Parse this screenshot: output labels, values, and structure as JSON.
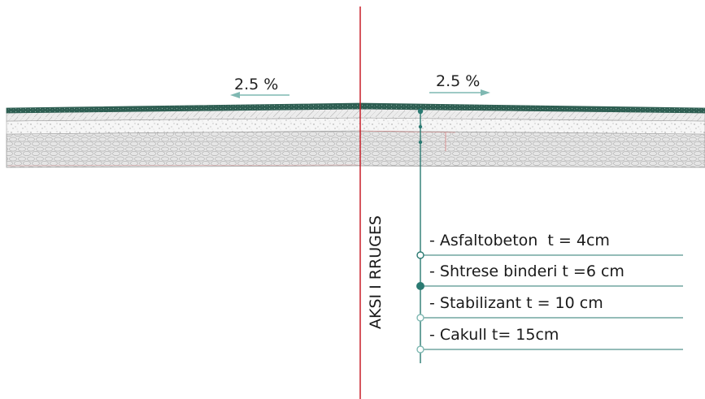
{
  "diagram": {
    "axis_label": "AKSI I RRUGES",
    "slope_left": "2.5 %",
    "slope_right": "2.5 %",
    "layers": [
      "- Asfaltobeton  t = 4cm",
      "- Shtrese binderi t =6 cm",
      "- Stabilizant t = 10 cm",
      "- Cakull t= 15cm"
    ],
    "colors": {
      "axis_line": "#c81e28",
      "leader_line": "#2a7a72",
      "asphalt": "#2e5e52",
      "binder": "#e4e4e4",
      "stabilizant": "#f1f1f1",
      "gravel": "#dcdcdc",
      "slope_arrow": "#7fb8b2"
    }
  }
}
